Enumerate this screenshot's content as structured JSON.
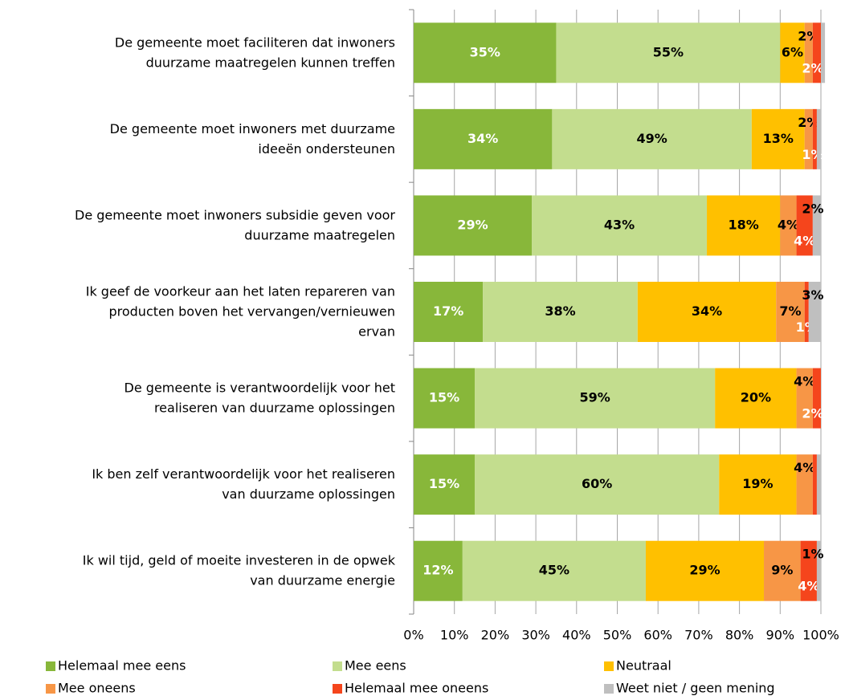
{
  "chart_data": {
    "type": "stacked-bar-horizontal",
    "categories": [
      "De gemeente moet faciliteren dat inwoners\nduurzame maatregelen kunnen treffen",
      "De gemeente moet inwoners met duurzame\nideeën ondersteunen",
      "De gemeente moet inwoners subsidie geven voor\nduurzame maatregelen",
      "Ik geef de voorkeur aan het laten repareren van\nproducten boven het vervangen/vernieuwen\nervan",
      "De gemeente is verantwoordelijk voor het\nrealiseren van duurzame oplossingen",
      "Ik ben zelf verantwoordelijk voor het realiseren\nvan duurzame oplossingen",
      "Ik wil tijd, geld of moeite investeren in de opwek\nvan duurzame energie"
    ],
    "series": [
      {
        "name": "Helemaal mee eens",
        "color": "#88b73a",
        "label_color": "#ffffff",
        "values": [
          35,
          34,
          29,
          17,
          15,
          15,
          12
        ],
        "value_labels": [
          "35%",
          "34%",
          "29%",
          "17%",
          "15%",
          "15%",
          "12%"
        ]
      },
      {
        "name": "Mee eens",
        "color": "#c3dd8e",
        "label_color": "#000000",
        "values": [
          55,
          49,
          43,
          38,
          59,
          60,
          45
        ],
        "value_labels": [
          "55%",
          "49%",
          "43%",
          "38%",
          "59%",
          "60%",
          "45%"
        ]
      },
      {
        "name": "Neutraal",
        "color": "#ffc000",
        "label_color": "#000000",
        "values": [
          6,
          13,
          18,
          34,
          20,
          19,
          29
        ],
        "value_labels": [
          "6%",
          "13%",
          "18%",
          "34%",
          "20%",
          "19%",
          "29%"
        ]
      },
      {
        "name": "Mee oneens",
        "color": "#f79646",
        "label_color": "#000000",
        "values": [
          2,
          2,
          4,
          7,
          4,
          4,
          9
        ],
        "value_labels": [
          "2%",
          "2%",
          "4%",
          "7%",
          "4%",
          "4%",
          "9%"
        ]
      },
      {
        "name": "Helemaal mee oneens",
        "color": "#f5451c",
        "label_color": "#ffffff",
        "values": [
          2,
          1,
          4,
          1,
          2,
          1,
          4
        ],
        "value_labels": [
          "2%",
          "1%",
          "4%",
          "1%",
          "2%",
          null,
          "4%"
        ]
      },
      {
        "name": "Weet niet / geen mening",
        "color": "#bfbfbf",
        "label_color": "#000000",
        "values": [
          1,
          1,
          2,
          3,
          0,
          1,
          1
        ],
        "value_labels": [
          null,
          null,
          "2%",
          "3%",
          null,
          null,
          "1%"
        ]
      }
    ],
    "xlim": [
      0,
      100
    ],
    "xticks": [
      {
        "value": 0,
        "label": "0%"
      },
      {
        "value": 10,
        "label": "10%"
      },
      {
        "value": 20,
        "label": "20%"
      },
      {
        "value": 30,
        "label": "30%"
      },
      {
        "value": 40,
        "label": "40%"
      },
      {
        "value": 50,
        "label": "50%"
      },
      {
        "value": 60,
        "label": "60%"
      },
      {
        "value": 70,
        "label": "70%"
      },
      {
        "value": 80,
        "label": "80%"
      },
      {
        "value": 90,
        "label": "90%"
      },
      {
        "value": 100,
        "label": "100%"
      }
    ],
    "grid": true,
    "legend": "bottom"
  }
}
